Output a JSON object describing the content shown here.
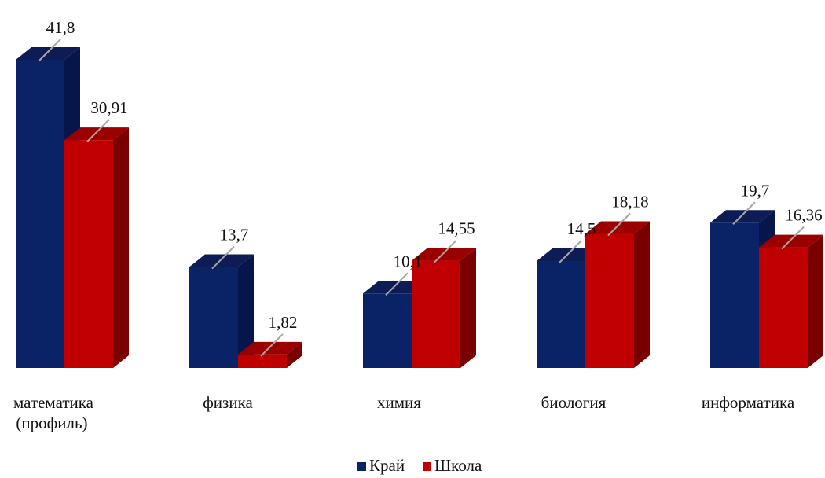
{
  "chart_data": {
    "type": "bar",
    "title": "",
    "xlabel": "",
    "ylabel": "",
    "categories": [
      [
        "математика",
        "(профиль)"
      ],
      [
        "физика"
      ],
      [
        "химия"
      ],
      [
        "биология"
      ],
      [
        "информатика"
      ]
    ],
    "series": [
      {
        "name": "Край",
        "values": [
          41.8,
          13.7,
          10.1,
          14.5,
          19.7
        ],
        "labels": [
          "41,8",
          "13,7",
          "10,1",
          "14,5",
          "19,7"
        ],
        "color": "#0a2266",
        "side_color": "#06154a",
        "top_color": "#0d1c55"
      },
      {
        "name": "Школа",
        "values": [
          30.91,
          1.82,
          14.55,
          18.18,
          16.36
        ],
        "labels": [
          "30,91",
          "1,82",
          "14,55",
          "18,18",
          "16,36"
        ],
        "color": "#c00000",
        "side_color": "#7a0000",
        "top_color": "#9a0000"
      }
    ],
    "ylim": [
      0,
      41.8
    ],
    "grid": false,
    "legend_position": "bottom-center",
    "style": "3d-column"
  }
}
